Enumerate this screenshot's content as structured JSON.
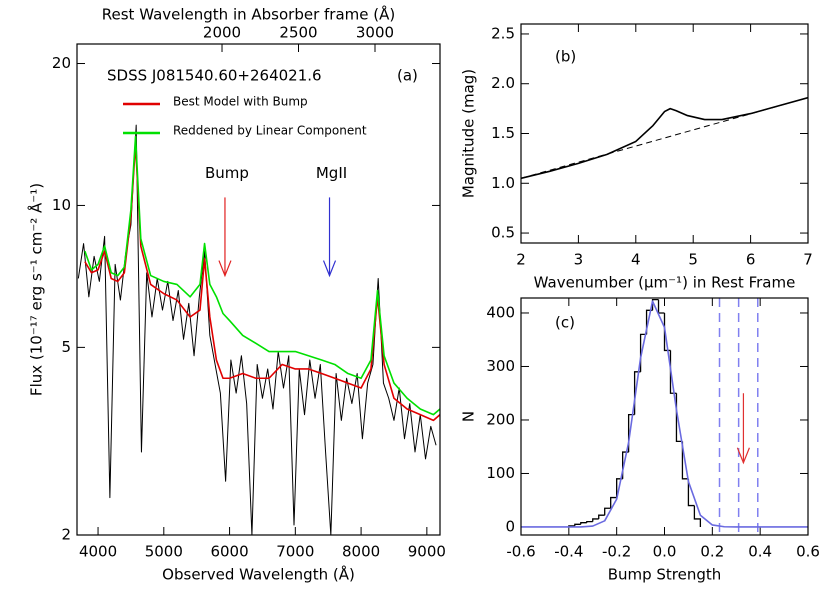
{
  "chart_data": [
    {
      "type": "line",
      "text": "SDSS J081540.60+264021.6",
      "panel_label": "(a)",
      "x_label": "Observed Wavelength (Å)",
      "y_label": "Flux (10⁻¹⁷ erg s⁻¹ cm⁻² Å⁻¹)",
      "x2_label": "Rest Wavelength in Absorber frame (Å)",
      "xlim": [
        3680,
        9200
      ],
      "xticks": [
        4000,
        5000,
        6000,
        7000,
        8000,
        9000
      ],
      "ylim": [
        2,
        22
      ],
      "yticks": [
        2,
        5,
        10,
        20
      ],
      "y_scale": "log",
      "x2lim": [
        1052,
        3425
      ],
      "x2ticks": [
        2000,
        2500,
        3000
      ],
      "legend": "upper left",
      "series": [
        {
          "color": "#000000",
          "x": [
            3700,
            3780,
            3860,
            3940,
            4020,
            4100,
            4180,
            4260,
            4340,
            4420,
            4500,
            4580,
            4660,
            4740,
            4820,
            4900,
            4980,
            5060,
            5140,
            5220,
            5300,
            5380,
            5460,
            5540,
            5620,
            5700,
            5780,
            5860,
            5940,
            6020,
            6100,
            6180,
            6260,
            6340,
            6420,
            6500,
            6580,
            6660,
            6740,
            6820,
            6900,
            6980,
            7060,
            7140,
            7220,
            7300,
            7380,
            7460,
            7540,
            7620,
            7700,
            7780,
            7860,
            7940,
            8020,
            8100,
            8180,
            8260,
            8340,
            8420,
            8500,
            8580,
            8660,
            8740,
            8820,
            8900,
            8980,
            9060,
            9140
          ],
          "values": [
            7.0,
            8.3,
            6.4,
            7.8,
            6.9,
            8.6,
            2.4,
            7.5,
            6.3,
            7.9,
            9.1,
            14.8,
            3.0,
            7.2,
            5.8,
            7.0,
            6.0,
            6.9,
            5.7,
            6.6,
            5.2,
            6.2,
            4.8,
            6.4,
            8.0,
            5.3,
            4.6,
            4.0,
            2.6,
            4.7,
            4.0,
            4.8,
            3.8,
            2.0,
            4.6,
            3.9,
            4.5,
            3.7,
            4.9,
            4.1,
            4.8,
            2.1,
            4.5,
            3.6,
            4.7,
            3.9,
            4.6,
            3.0,
            2.0,
            4.4,
            3.5,
            4.3,
            3.8,
            4.4,
            3.2,
            4.2,
            4.6,
            7.0,
            4.2,
            3.9,
            3.5,
            4.1,
            3.2,
            3.8,
            3.0,
            3.6,
            2.9,
            3.4,
            3.1
          ]
        },
        {
          "name": "Best Model with Bump",
          "color": "#e00000",
          "x": [
            3800,
            3900,
            4000,
            4100,
            4200,
            4300,
            4400,
            4500,
            4570,
            4650,
            4800,
            5000,
            5200,
            5400,
            5550,
            5620,
            5700,
            5800,
            5900,
            6000,
            6200,
            6400,
            6600,
            6800,
            7000,
            7200,
            7400,
            7600,
            7800,
            8000,
            8150,
            8250,
            8350,
            8500,
            8700,
            8900,
            9100,
            9200
          ],
          "values": [
            7.6,
            7.2,
            7.3,
            8.0,
            7.0,
            6.9,
            7.2,
            9.5,
            13.5,
            8.2,
            6.8,
            6.5,
            6.3,
            5.8,
            6.0,
            7.7,
            5.8,
            4.7,
            4.3,
            4.3,
            4.4,
            4.3,
            4.3,
            4.6,
            4.5,
            4.5,
            4.4,
            4.3,
            4.2,
            4.1,
            4.5,
            6.4,
            4.6,
            3.9,
            3.7,
            3.6,
            3.5,
            3.6
          ]
        },
        {
          "name": "Reddened by Linear Component",
          "color": "#00e000",
          "x": [
            3800,
            3900,
            4000,
            4100,
            4200,
            4300,
            4400,
            4500,
            4570,
            4650,
            4800,
            5000,
            5200,
            5400,
            5550,
            5620,
            5700,
            5800,
            5900,
            6000,
            6200,
            6400,
            6600,
            6800,
            7000,
            7200,
            7400,
            7600,
            7800,
            8000,
            8150,
            8250,
            8350,
            8500,
            8700,
            8900,
            9100,
            9200
          ],
          "values": [
            8.0,
            7.3,
            7.5,
            8.2,
            7.2,
            7.1,
            7.4,
            9.8,
            14.0,
            8.5,
            7.1,
            6.9,
            6.8,
            6.4,
            6.8,
            8.3,
            6.8,
            6.4,
            5.9,
            5.7,
            5.3,
            5.1,
            4.9,
            4.9,
            4.9,
            4.8,
            4.7,
            4.6,
            4.4,
            4.3,
            4.7,
            6.6,
            4.8,
            4.2,
            3.9,
            3.7,
            3.6,
            3.7
          ]
        }
      ],
      "annotations": [
        {
          "text": "Bump",
          "color": "#e02020",
          "x": 5930,
          "y_from": 10.4,
          "y_to": 7.1
        },
        {
          "text": "MgII",
          "color": "#3030d0",
          "x": 7520,
          "y_from": 10.4,
          "y_to": 7.1
        }
      ]
    },
    {
      "type": "line",
      "panel_label": "(b)",
      "x_label": "Wavenumber (μm⁻¹) in Rest Frame",
      "y_label": "Magnitude (mag)",
      "xlim": [
        2,
        7
      ],
      "xticks": [
        2,
        3,
        4,
        5,
        6,
        7
      ],
      "ylim": [
        0.4,
        2.6
      ],
      "yticks": [
        0.5,
        {
          "value": 1,
          "label": "1.0"
        },
        1.5,
        {
          "value": 2,
          "label": "2.0"
        },
        2.5
      ],
      "series": [
        {
          "color": "#000000",
          "x": [
            2,
            2.5,
            3,
            3.5,
            4,
            4.3,
            4.5,
            4.6,
            4.7,
            4.9,
            5.2,
            5.5,
            6,
            6.5,
            7
          ],
          "values": [
            1.05,
            1.12,
            1.2,
            1.29,
            1.42,
            1.58,
            1.72,
            1.75,
            1.73,
            1.68,
            1.64,
            1.64,
            1.7,
            1.78,
            1.86
          ]
        },
        {
          "color": "#000000",
          "style": "dashed",
          "x": [
            2,
            7
          ],
          "values": [
            1.05,
            1.86
          ]
        }
      ]
    },
    {
      "type": "histogram",
      "panel_label": "(c)",
      "x_label": "Bump Strength",
      "y_label": "N",
      "xlim": [
        -0.6,
        0.6
      ],
      "xticks": [
        -0.6,
        -0.4,
        -0.2,
        {
          "value": 0,
          "label": "0.0"
        },
        0.2,
        0.4,
        0.6
      ],
      "ylim": [
        -15,
        428
      ],
      "yticks": [
        0,
        100,
        200,
        300,
        400
      ],
      "color": "#000000",
      "bins": [
        -0.4,
        -0.375,
        -0.35,
        -0.325,
        -0.3,
        -0.275,
        -0.25,
        -0.225,
        -0.2,
        -0.175,
        -0.15,
        -0.125,
        -0.1,
        -0.075,
        -0.05,
        -0.025,
        0,
        0.025,
        0.05,
        0.075,
        0.1,
        0.125,
        0.15
      ],
      "values": [
        2,
        5,
        8,
        10,
        15,
        22,
        35,
        55,
        90,
        140,
        210,
        290,
        360,
        405,
        425,
        400,
        330,
        250,
        160,
        90,
        40,
        15
      ],
      "series": [
        {
          "color": "#6a6ae0",
          "x": [
            -0.6,
            -0.5,
            -0.4,
            -0.35,
            -0.3,
            -0.25,
            -0.2,
            -0.15,
            -0.1,
            -0.05,
            0,
            0.05,
            0.1,
            0.15,
            0.2,
            0.25,
            0.3,
            0.4,
            0.5,
            0.6
          ],
          "values": [
            0,
            0,
            0,
            0.16,
            1.7,
            11.5,
            52,
            158,
            316,
            422,
            373,
            219,
            85,
            22,
            3.8,
            0.4,
            0,
            0,
            0,
            0
          ]
        }
      ],
      "reference_lines": {
        "color": "#8080f0",
        "x": [
          0.23,
          0.31,
          0.39
        ]
      },
      "annotations": [
        {
          "color": "#e03030",
          "x": 0.33,
          "y_from": 250,
          "y_to": 120
        }
      ]
    }
  ]
}
